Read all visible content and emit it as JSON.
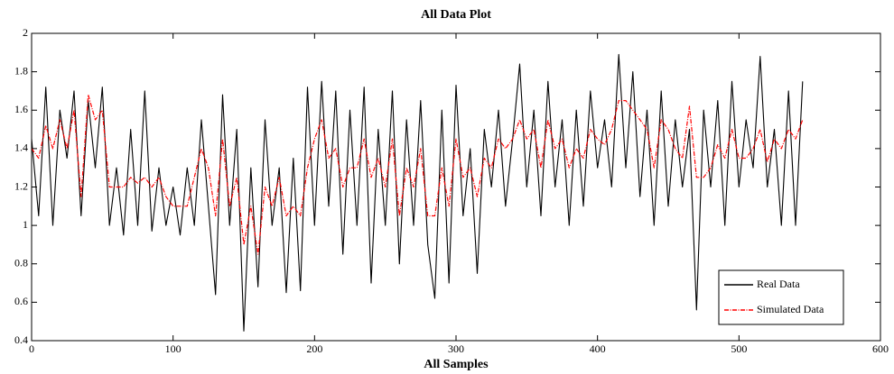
{
  "chart_data": {
    "type": "line",
    "title": "All Data Plot",
    "xlabel": "All Samples",
    "x": [
      0,
      5,
      10,
      15,
      20,
      25,
      30,
      35,
      40,
      45,
      50,
      55,
      60,
      65,
      70,
      75,
      80,
      85,
      90,
      95,
      100,
      105,
      110,
      115,
      120,
      125,
      130,
      135,
      140,
      145,
      150,
      155,
      160,
      165,
      170,
      175,
      180,
      185,
      190,
      195,
      200,
      205,
      210,
      215,
      220,
      225,
      230,
      235,
      240,
      245,
      250,
      255,
      260,
      265,
      270,
      275,
      280,
      285,
      290,
      295,
      300,
      305,
      310,
      315,
      320,
      325,
      330,
      335,
      340,
      345,
      350,
      355,
      360,
      365,
      370,
      375,
      380,
      385,
      390,
      395,
      400,
      405,
      410,
      415,
      420,
      425,
      430,
      435,
      440,
      445,
      450,
      455,
      460,
      465,
      470,
      475,
      480,
      485,
      490,
      495,
      500,
      505,
      510,
      515,
      520,
      525,
      530,
      535,
      540,
      545
    ],
    "series": [
      {
        "name": "Real Data",
        "color": "#000000",
        "values": [
          1.45,
          1.05,
          1.72,
          1.0,
          1.6,
          1.35,
          1.7,
          1.05,
          1.65,
          1.3,
          1.72,
          1.0,
          1.3,
          0.95,
          1.5,
          1.0,
          1.7,
          0.97,
          1.3,
          1.0,
          1.2,
          0.95,
          1.3,
          1.0,
          1.55,
          1.1,
          0.64,
          1.68,
          1.0,
          1.5,
          0.45,
          1.3,
          0.68,
          1.55,
          1.0,
          1.3,
          0.65,
          1.35,
          0.66,
          1.72,
          1.0,
          1.75,
          1.1,
          1.7,
          0.85,
          1.6,
          1.0,
          1.72,
          0.7,
          1.5,
          1.0,
          1.7,
          0.8,
          1.55,
          1.0,
          1.65,
          0.9,
          0.62,
          1.6,
          0.7,
          1.73,
          1.05,
          1.4,
          0.75,
          1.5,
          1.2,
          1.6,
          1.1,
          1.45,
          1.84,
          1.2,
          1.6,
          1.05,
          1.75,
          1.2,
          1.55,
          1.0,
          1.6,
          1.1,
          1.7,
          1.3,
          1.55,
          1.2,
          1.89,
          1.3,
          1.8,
          1.15,
          1.6,
          1.0,
          1.7,
          1.1,
          1.55,
          1.2,
          1.5,
          0.56,
          1.6,
          1.2,
          1.65,
          1.0,
          1.75,
          1.2,
          1.55,
          1.3,
          1.88,
          1.2,
          1.5,
          1.0,
          1.7,
          1.0,
          1.75
        ]
      },
      {
        "name": "Simulated Data",
        "color": "#ff0000",
        "dash": true,
        "values": [
          1.4,
          1.35,
          1.52,
          1.4,
          1.55,
          1.4,
          1.6,
          1.15,
          1.68,
          1.55,
          1.6,
          1.2,
          1.2,
          1.2,
          1.25,
          1.22,
          1.25,
          1.2,
          1.25,
          1.15,
          1.1,
          1.1,
          1.1,
          1.25,
          1.4,
          1.3,
          1.05,
          1.45,
          1.1,
          1.25,
          0.9,
          1.1,
          0.85,
          1.2,
          1.1,
          1.25,
          1.05,
          1.1,
          1.05,
          1.3,
          1.45,
          1.55,
          1.35,
          1.4,
          1.2,
          1.3,
          1.3,
          1.45,
          1.25,
          1.35,
          1.2,
          1.45,
          1.05,
          1.3,
          1.2,
          1.4,
          1.05,
          1.05,
          1.3,
          1.1,
          1.45,
          1.25,
          1.3,
          1.15,
          1.35,
          1.3,
          1.45,
          1.4,
          1.45,
          1.55,
          1.45,
          1.5,
          1.3,
          1.55,
          1.4,
          1.45,
          1.3,
          1.4,
          1.35,
          1.5,
          1.45,
          1.42,
          1.5,
          1.65,
          1.65,
          1.6,
          1.55,
          1.5,
          1.3,
          1.55,
          1.5,
          1.4,
          1.35,
          1.62,
          1.25,
          1.25,
          1.3,
          1.42,
          1.35,
          1.5,
          1.35,
          1.35,
          1.4,
          1.5,
          1.33,
          1.45,
          1.4,
          1.5,
          1.45,
          1.55
        ]
      }
    ],
    "xlim": [
      0,
      600
    ],
    "xticks": [
      0,
      100,
      200,
      300,
      400,
      500,
      600
    ],
    "ylim": [
      0.4,
      2
    ],
    "yticks": [
      0.4,
      0.6,
      0.8,
      1,
      1.2,
      1.4,
      1.6,
      1.8,
      2
    ],
    "legend": "lower right"
  }
}
